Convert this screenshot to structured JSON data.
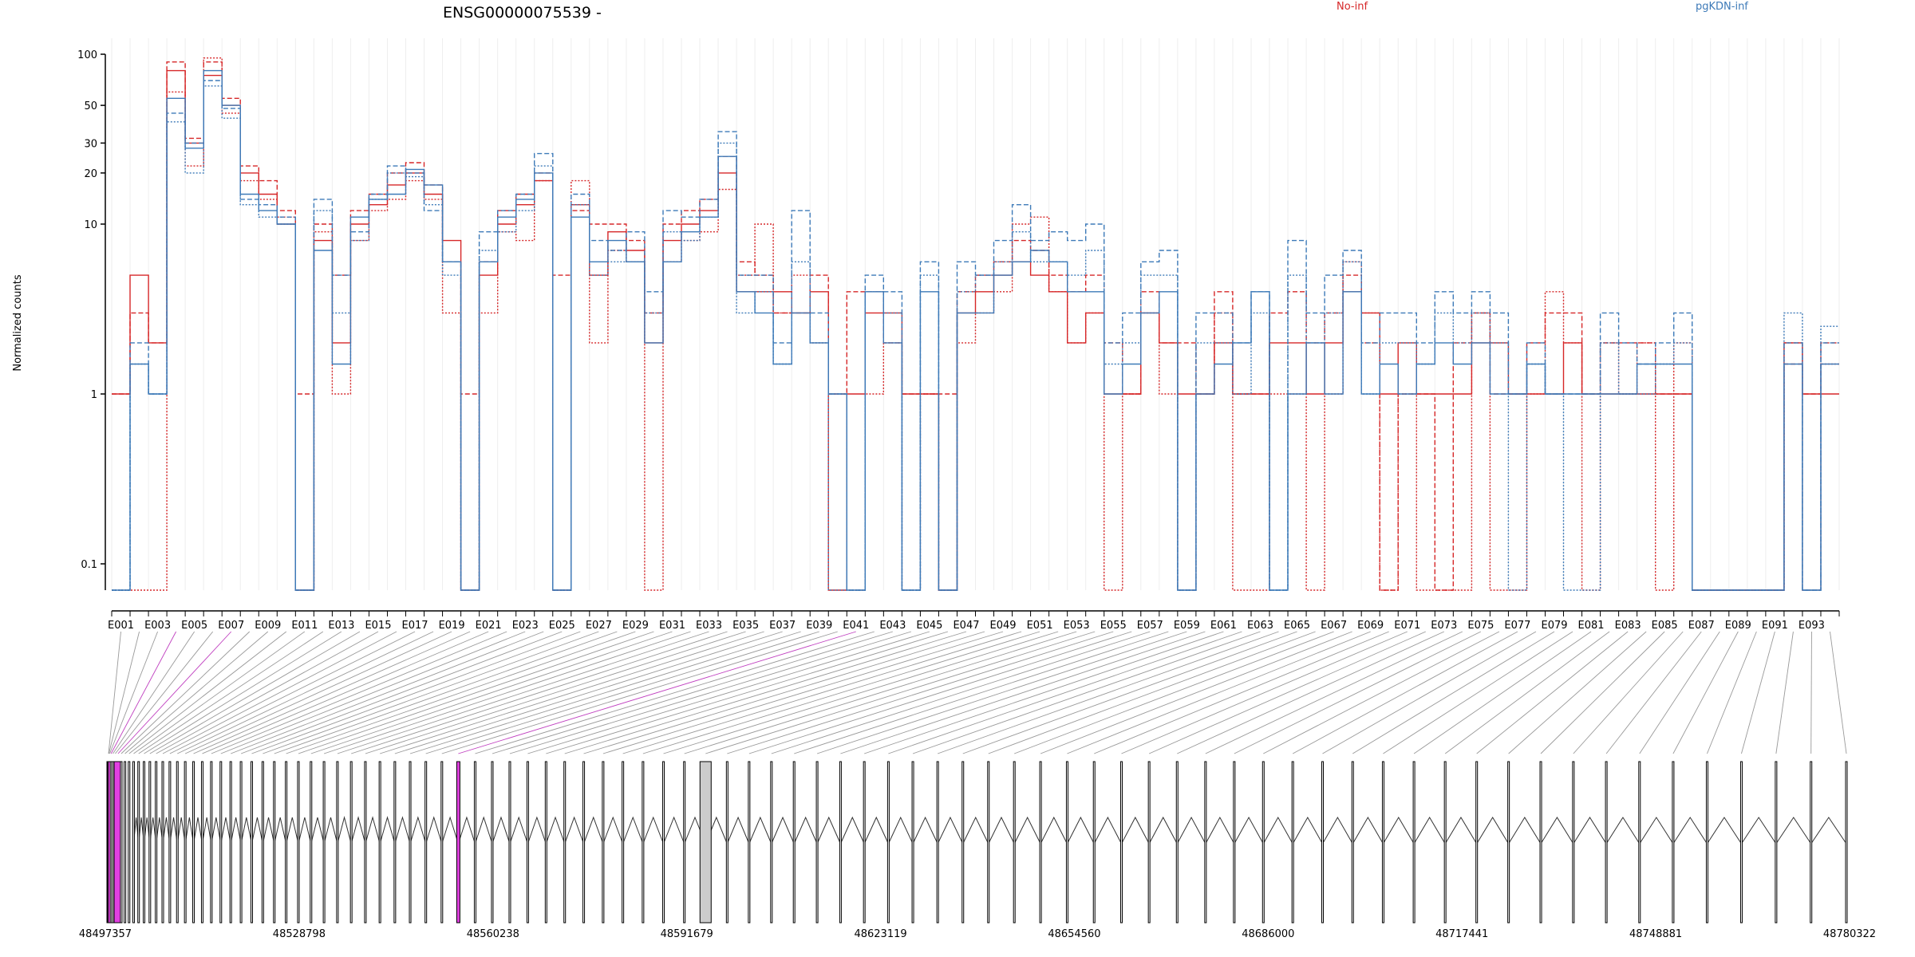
{
  "chart_data": {
    "type": "line",
    "title": "ENSG00000075539 -",
    "ylabel": "Normalized counts",
    "yscale": "log",
    "yticks": [
      0.1,
      1,
      10,
      20,
      30,
      50,
      100
    ],
    "ytick_labels": [
      "0.1",
      "1",
      "10",
      "20",
      "30",
      "50",
      "100"
    ],
    "xaxis_labels": [
      "E001",
      "E003",
      "E005",
      "E007",
      "E009",
      "E011",
      "E013",
      "E015",
      "E017",
      "E019",
      "E021",
      "E023",
      "E025",
      "E027",
      "E029",
      "E031",
      "E033",
      "E035",
      "E037",
      "E039",
      "E041",
      "E043",
      "E045",
      "E047",
      "E049",
      "E051",
      "E053",
      "E055",
      "E057",
      "E059",
      "E061",
      "E063",
      "E065",
      "E067",
      "E069",
      "E071",
      "E073",
      "E075",
      "E077",
      "E079",
      "E081",
      "E083",
      "E085",
      "E087",
      "E089",
      "E091",
      "E093"
    ],
    "exon_count": 94,
    "genomic_coordinates": [
      "48497357",
      "48528798",
      "48560238",
      "48591679",
      "48623119",
      "48654560",
      "48686000",
      "48717441",
      "48748881",
      "48780322"
    ],
    "legend": [
      {
        "name": "No-inf",
        "color": "#d62728"
      },
      {
        "name": "pgKDN-inf",
        "color": "#3d7ab8"
      }
    ],
    "series": [
      {
        "group": "No-inf",
        "color": "#d62728",
        "style": "solid",
        "values": [
          1,
          5,
          2,
          80,
          30,
          75,
          50,
          20,
          15,
          10,
          0.07,
          8,
          2,
          10,
          13,
          17,
          20,
          15,
          8,
          0.07,
          5,
          10,
          13,
          18,
          0.07,
          13,
          5,
          9,
          7,
          2,
          8,
          10,
          12,
          20,
          4,
          4,
          4,
          3,
          4,
          0.07,
          1,
          3,
          3,
          1,
          1,
          0.07,
          3,
          4,
          5,
          6,
          5,
          4,
          2,
          3,
          1,
          1,
          3,
          2,
          1,
          1,
          2,
          1,
          1,
          2,
          2,
          1,
          2,
          4,
          3,
          1,
          2,
          1,
          1,
          1,
          2,
          2,
          1,
          1,
          1,
          2,
          1,
          1,
          1,
          1,
          1,
          1,
          0.07,
          0.07,
          0.07,
          0.07,
          0.07,
          2,
          1,
          1
        ]
      },
      {
        "group": "No-inf",
        "color": "#d62728",
        "style": "dashed",
        "values": [
          1,
          3,
          2,
          90,
          32,
          90,
          55,
          22,
          18,
          12,
          1,
          10,
          5,
          12,
          15,
          20,
          23,
          17,
          6,
          1,
          6,
          12,
          15,
          20,
          5,
          12,
          10,
          10,
          8,
          3,
          10,
          12,
          14,
          25,
          6,
          5,
          3,
          3,
          5,
          1,
          4,
          4,
          2,
          1,
          1,
          1,
          4,
          5,
          6,
          8,
          7,
          5,
          4,
          5,
          2,
          1,
          4,
          2,
          2,
          1,
          4,
          1,
          1,
          3,
          4,
          2,
          3,
          5,
          2,
          0.07,
          1,
          1,
          0.07,
          2,
          3,
          1,
          1,
          2,
          3,
          3,
          1,
          2,
          2,
          2,
          1,
          1,
          0.07,
          0.07,
          0.07,
          0.07,
          0.07,
          1.5,
          1,
          2
        ]
      },
      {
        "group": "No-inf",
        "color": "#d62728",
        "style": "dotted",
        "values": [
          0.07,
          0.07,
          0.07,
          60,
          22,
          95,
          45,
          18,
          14,
          11,
          0.07,
          9,
          1,
          8,
          12,
          14,
          18,
          14,
          3,
          0.07,
          3,
          9,
          8,
          18,
          0.07,
          18,
          2,
          7,
          6,
          0.07,
          6,
          8,
          9,
          16,
          5,
          10,
          3,
          5,
          2,
          1,
          0.07,
          1,
          2,
          0.07,
          1,
          0.07,
          2,
          3,
          4,
          10,
          11,
          4,
          2,
          3,
          0.07,
          1,
          3,
          1,
          0.07,
          1,
          3,
          0.07,
          0.07,
          1,
          1,
          0.07,
          1,
          6,
          3,
          0.07,
          1,
          0.07,
          0.07,
          0.07,
          3,
          0.07,
          0.07,
          1,
          4,
          2,
          0.07,
          2,
          1,
          2,
          0.07,
          2,
          0.07,
          0.07,
          0.07,
          0.07,
          0.07,
          2,
          0.07,
          1.5
        ]
      },
      {
        "group": "pgKDN-inf",
        "color": "#3d7ab8",
        "style": "solid",
        "values": [
          0.07,
          1.5,
          1,
          55,
          28,
          80,
          50,
          15,
          12,
          10,
          0.07,
          7,
          1.5,
          11,
          14,
          15,
          21,
          17,
          6,
          0.07,
          6,
          11,
          14,
          20,
          0.07,
          11,
          6,
          8,
          6,
          2,
          6,
          9,
          11,
          25,
          4,
          3,
          1.5,
          3,
          2,
          1,
          0.07,
          4,
          2,
          0.07,
          4,
          0.07,
          3,
          3,
          5,
          6,
          7,
          6,
          4,
          4,
          1,
          1.5,
          3,
          4,
          0.07,
          1,
          1.5,
          2,
          4,
          0.07,
          1,
          2,
          1,
          4,
          1,
          1.5,
          1,
          1.5,
          2,
          1.5,
          2,
          1,
          1,
          1.5,
          1,
          1,
          1,
          1,
          1,
          1.5,
          1.5,
          1.5,
          0.07,
          0.07,
          0.07,
          0.07,
          0.07,
          1.5,
          0.07,
          1.5
        ]
      },
      {
        "group": "pgKDN-inf",
        "color": "#3d7ab8",
        "style": "dashed",
        "values": [
          0.07,
          2,
          1,
          45,
          30,
          70,
          48,
          14,
          13,
          11,
          0.07,
          14,
          5,
          9,
          15,
          22,
          20,
          12,
          6,
          0.07,
          9,
          12,
          15,
          26,
          0.07,
          15,
          8,
          7,
          9,
          4,
          12,
          11,
          14,
          35,
          5,
          5,
          2,
          12,
          3,
          1,
          0.07,
          5,
          4,
          0.07,
          6,
          0.07,
          6,
          5,
          8,
          13,
          8,
          9,
          8,
          10,
          2,
          3,
          6,
          7,
          0.07,
          3,
          3,
          2,
          4,
          0.07,
          8,
          3,
          5,
          7,
          2,
          3,
          3,
          2,
          4,
          3,
          4,
          3,
          1,
          2,
          1,
          1,
          1,
          3,
          2,
          1.5,
          2,
          3,
          0.07,
          0.07,
          0.07,
          0.07,
          0.07,
          2,
          0.07,
          2
        ]
      },
      {
        "group": "pgKDN-inf",
        "color": "#3d7ab8",
        "style": "dotted",
        "values": [
          0.07,
          1.5,
          1,
          40,
          20,
          65,
          42,
          13,
          11,
          10,
          0.07,
          12,
          3,
          8,
          14,
          20,
          19,
          13,
          5,
          0.07,
          7,
          9,
          12,
          22,
          0.07,
          13,
          5,
          6,
          6,
          3,
          9,
          8,
          11,
          30,
          3,
          4,
          1.5,
          6,
          2,
          0.07,
          0.07,
          4,
          3,
          0.07,
          5,
          0.07,
          4,
          5,
          6,
          9,
          6,
          6,
          5,
          7,
          1.5,
          2,
          5,
          5,
          0.07,
          2,
          2,
          1,
          3,
          0.07,
          5,
          2,
          3,
          6,
          1,
          2,
          2,
          1.5,
          3,
          2,
          3,
          2,
          0.07,
          1.5,
          1,
          0.07,
          0.07,
          2,
          1,
          1,
          1.5,
          2,
          0.07,
          0.07,
          0.07,
          0.07,
          0.07,
          3,
          0.07,
          2.5
        ]
      }
    ]
  }
}
